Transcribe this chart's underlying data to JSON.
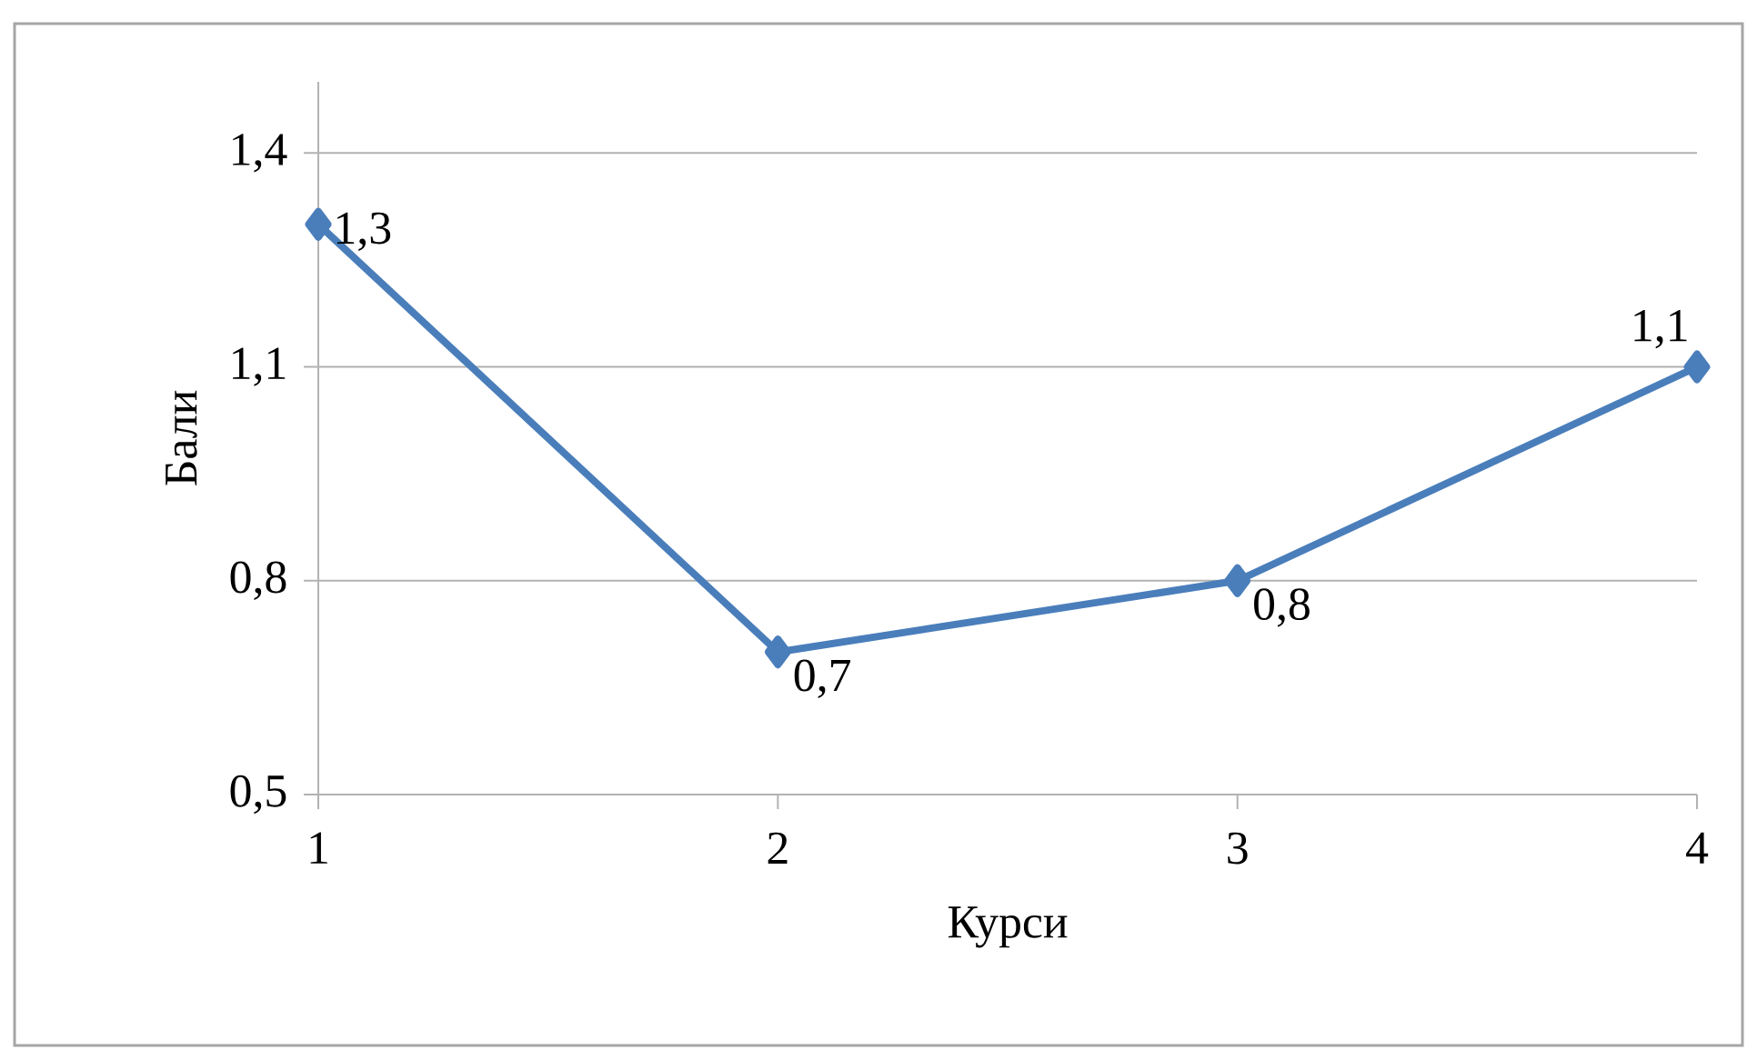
{
  "chart_data": {
    "type": "line",
    "xlabel": "Курси",
    "ylabel": "Бали",
    "x": [
      1,
      2,
      3,
      4
    ],
    "values": [
      1.3,
      0.7,
      0.8,
      1.1
    ],
    "value_labels": [
      "1,3",
      "0,7",
      "0,8",
      "1,1"
    ],
    "color": "#4a7ebb",
    "marker": "diamond",
    "line_style": "solid",
    "grid": "y",
    "xlim": [
      1,
      4
    ],
    "xticks": [
      1,
      2,
      3,
      4
    ],
    "ylim": [
      0.5,
      1.5
    ],
    "yticks": [
      {
        "value": 0.5,
        "label": "0,5"
      },
      {
        "value": 0.8,
        "label": "0,8"
      },
      {
        "value": 1.1,
        "label": "1,1"
      },
      {
        "value": 1.4,
        "label": "1,4"
      }
    ]
  }
}
